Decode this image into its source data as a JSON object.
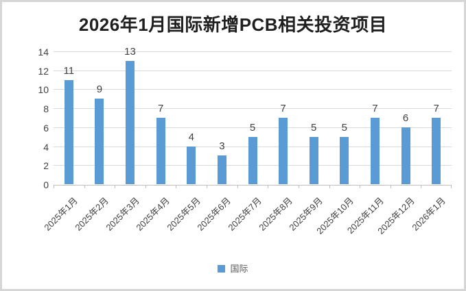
{
  "chart_data": {
    "type": "bar",
    "title": "2026年1月国际新增PCB相关投资项目",
    "categories": [
      "2025年1月",
      "2025年2月",
      "2025年3月",
      "2025年4月",
      "2025年5月",
      "2025年6月",
      "2025年7月",
      "2025年8月",
      "2025年9月",
      "2025年10月",
      "2025年11月",
      "2025年12月",
      "2026年1月"
    ],
    "series": [
      {
        "name": "国际",
        "values": [
          11,
          9,
          13,
          7,
          4,
          3,
          5,
          7,
          5,
          5,
          7,
          6,
          7
        ],
        "color": "#5b9bd5"
      }
    ],
    "xlabel": "",
    "ylabel": "",
    "ylim": [
      0,
      14
    ],
    "ytick_step": 2,
    "yticks": [
      0,
      2,
      4,
      6,
      8,
      10,
      12,
      14
    ],
    "grid": true,
    "data_labels": true,
    "legend_position": "bottom",
    "colors": {
      "bar": "#5b9bd5",
      "gridline": "#d9d9d9",
      "axis_line": "#bfbfbf",
      "tick_label": "#404040",
      "data_label": "#404040",
      "legend_text": "#595959",
      "title": "#1f1f1f",
      "frame_border": "#d6d6d6",
      "background": "#ffffff"
    }
  }
}
